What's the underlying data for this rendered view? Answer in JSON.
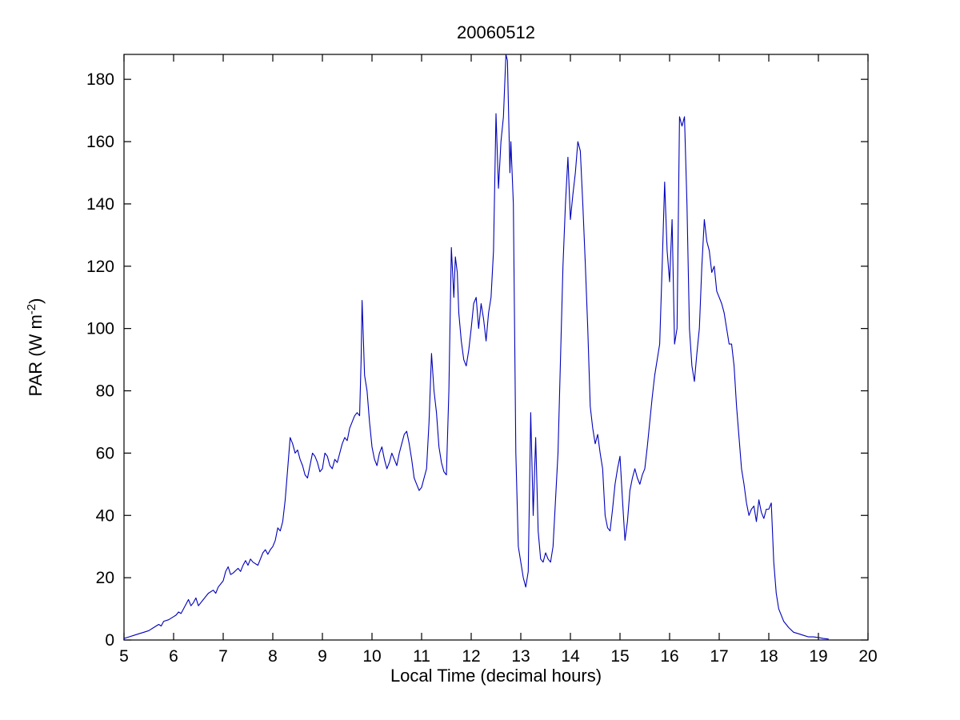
{
  "chart_data": {
    "type": "line",
    "title": "20060512",
    "xlabel": "Local Time (decimal hours)",
    "ylabel": "PAR (W m-2)",
    "ylabel_parts": {
      "main": "PAR (W m",
      "sup": "-2",
      "end": ")"
    },
    "xlim": [
      5,
      20
    ],
    "ylim": [
      0,
      188
    ],
    "x_ticks": [
      5,
      6,
      7,
      8,
      9,
      10,
      11,
      12,
      13,
      14,
      15,
      16,
      17,
      18,
      19,
      20
    ],
    "y_ticks": [
      0,
      20,
      40,
      60,
      80,
      100,
      120,
      140,
      160,
      180
    ],
    "grid": false,
    "legend": "none",
    "line_color": "#0000BB",
    "axis_color": "#000000",
    "series": [
      {
        "name": "PAR",
        "points": [
          [
            5.0,
            0.5
          ],
          [
            5.1,
            1
          ],
          [
            5.2,
            1.5
          ],
          [
            5.3,
            2
          ],
          [
            5.4,
            2.5
          ],
          [
            5.5,
            3
          ],
          [
            5.6,
            4
          ],
          [
            5.7,
            5
          ],
          [
            5.75,
            4.5
          ],
          [
            5.8,
            6
          ],
          [
            5.9,
            6.5
          ],
          [
            6.0,
            7.5
          ],
          [
            6.05,
            8
          ],
          [
            6.1,
            9
          ],
          [
            6.15,
            8.5
          ],
          [
            6.2,
            10
          ],
          [
            6.3,
            13
          ],
          [
            6.35,
            11
          ],
          [
            6.4,
            12
          ],
          [
            6.45,
            13.5
          ],
          [
            6.5,
            11
          ],
          [
            6.6,
            13
          ],
          [
            6.7,
            15
          ],
          [
            6.8,
            16
          ],
          [
            6.85,
            15
          ],
          [
            6.9,
            17
          ],
          [
            7.0,
            19
          ],
          [
            7.05,
            22
          ],
          [
            7.1,
            23.5
          ],
          [
            7.15,
            21
          ],
          [
            7.2,
            21.5
          ],
          [
            7.3,
            23
          ],
          [
            7.35,
            22
          ],
          [
            7.4,
            24
          ],
          [
            7.45,
            25.5
          ],
          [
            7.5,
            24
          ],
          [
            7.55,
            26
          ],
          [
            7.6,
            25
          ],
          [
            7.7,
            24
          ],
          [
            7.8,
            28
          ],
          [
            7.85,
            29
          ],
          [
            7.9,
            27.5
          ],
          [
            7.95,
            29
          ],
          [
            8.0,
            30
          ],
          [
            8.05,
            32
          ],
          [
            8.1,
            36
          ],
          [
            8.15,
            35
          ],
          [
            8.2,
            38
          ],
          [
            8.25,
            45
          ],
          [
            8.3,
            55
          ],
          [
            8.35,
            65
          ],
          [
            8.4,
            63
          ],
          [
            8.45,
            60
          ],
          [
            8.5,
            61
          ],
          [
            8.55,
            58
          ],
          [
            8.6,
            56
          ],
          [
            8.65,
            53
          ],
          [
            8.7,
            52
          ],
          [
            8.75,
            56
          ],
          [
            8.8,
            60
          ],
          [
            8.85,
            59
          ],
          [
            8.9,
            57
          ],
          [
            8.95,
            54
          ],
          [
            9.0,
            55
          ],
          [
            9.05,
            60
          ],
          [
            9.1,
            59
          ],
          [
            9.15,
            56
          ],
          [
            9.2,
            55
          ],
          [
            9.25,
            58
          ],
          [
            9.3,
            57
          ],
          [
            9.35,
            60
          ],
          [
            9.4,
            63
          ],
          [
            9.45,
            65
          ],
          [
            9.5,
            64
          ],
          [
            9.55,
            68
          ],
          [
            9.6,
            70
          ],
          [
            9.65,
            72
          ],
          [
            9.7,
            73
          ],
          [
            9.75,
            72
          ],
          [
            9.78,
            90
          ],
          [
            9.8,
            109
          ],
          [
            9.82,
            100
          ],
          [
            9.85,
            85
          ],
          [
            9.9,
            80
          ],
          [
            9.95,
            70
          ],
          [
            10.0,
            62
          ],
          [
            10.05,
            58
          ],
          [
            10.1,
            56
          ],
          [
            10.15,
            60
          ],
          [
            10.2,
            62
          ],
          [
            10.25,
            58
          ],
          [
            10.3,
            55
          ],
          [
            10.35,
            57
          ],
          [
            10.4,
            60
          ],
          [
            10.45,
            58
          ],
          [
            10.5,
            56
          ],
          [
            10.55,
            60
          ],
          [
            10.6,
            63
          ],
          [
            10.65,
            66
          ],
          [
            10.7,
            67
          ],
          [
            10.75,
            63
          ],
          [
            10.8,
            58
          ],
          [
            10.85,
            52
          ],
          [
            10.9,
            50
          ],
          [
            10.95,
            48
          ],
          [
            11.0,
            49
          ],
          [
            11.05,
            52
          ],
          [
            11.1,
            55
          ],
          [
            11.15,
            70
          ],
          [
            11.2,
            92
          ],
          [
            11.25,
            80
          ],
          [
            11.3,
            73
          ],
          [
            11.35,
            62
          ],
          [
            11.4,
            57
          ],
          [
            11.45,
            54
          ],
          [
            11.5,
            53
          ],
          [
            11.55,
            80
          ],
          [
            11.6,
            126
          ],
          [
            11.65,
            110
          ],
          [
            11.68,
            123
          ],
          [
            11.72,
            118
          ],
          [
            11.75,
            105
          ],
          [
            11.8,
            96
          ],
          [
            11.85,
            90
          ],
          [
            11.9,
            88
          ],
          [
            11.95,
            93
          ],
          [
            12.0,
            100
          ],
          [
            12.05,
            108
          ],
          [
            12.1,
            110
          ],
          [
            12.15,
            100
          ],
          [
            12.2,
            108
          ],
          [
            12.25,
            103
          ],
          [
            12.3,
            96
          ],
          [
            12.35,
            105
          ],
          [
            12.4,
            110
          ],
          [
            12.45,
            125
          ],
          [
            12.5,
            169
          ],
          [
            12.55,
            145
          ],
          [
            12.6,
            160
          ],
          [
            12.65,
            168
          ],
          [
            12.7,
            188
          ],
          [
            12.73,
            186
          ],
          [
            12.78,
            150
          ],
          [
            12.8,
            160
          ],
          [
            12.85,
            140
          ],
          [
            12.9,
            60
          ],
          [
            12.95,
            30
          ],
          [
            13.0,
            25
          ],
          [
            13.05,
            20
          ],
          [
            13.1,
            17
          ],
          [
            13.15,
            22
          ],
          [
            13.2,
            73
          ],
          [
            13.25,
            40
          ],
          [
            13.3,
            65
          ],
          [
            13.35,
            35
          ],
          [
            13.4,
            26
          ],
          [
            13.45,
            25
          ],
          [
            13.5,
            28
          ],
          [
            13.55,
            26
          ],
          [
            13.6,
            25
          ],
          [
            13.65,
            30
          ],
          [
            13.7,
            45
          ],
          [
            13.75,
            60
          ],
          [
            13.8,
            90
          ],
          [
            13.85,
            120
          ],
          [
            13.9,
            140
          ],
          [
            13.95,
            155
          ],
          [
            14.0,
            135
          ],
          [
            14.05,
            143
          ],
          [
            14.1,
            150
          ],
          [
            14.15,
            160
          ],
          [
            14.2,
            157
          ],
          [
            14.25,
            140
          ],
          [
            14.3,
            121
          ],
          [
            14.35,
            100
          ],
          [
            14.4,
            75
          ],
          [
            14.45,
            68
          ],
          [
            14.5,
            63
          ],
          [
            14.55,
            66
          ],
          [
            14.6,
            60
          ],
          [
            14.65,
            55
          ],
          [
            14.7,
            40
          ],
          [
            14.75,
            36
          ],
          [
            14.8,
            35
          ],
          [
            14.85,
            42
          ],
          [
            14.9,
            50
          ],
          [
            14.95,
            55
          ],
          [
            15.0,
            59
          ],
          [
            15.05,
            45
          ],
          [
            15.1,
            32
          ],
          [
            15.15,
            38
          ],
          [
            15.2,
            48
          ],
          [
            15.25,
            52
          ],
          [
            15.3,
            55
          ],
          [
            15.35,
            52
          ],
          [
            15.4,
            50
          ],
          [
            15.45,
            53
          ],
          [
            15.5,
            55
          ],
          [
            15.55,
            62
          ],
          [
            15.6,
            70
          ],
          [
            15.65,
            78
          ],
          [
            15.7,
            85
          ],
          [
            15.75,
            90
          ],
          [
            15.8,
            95
          ],
          [
            15.85,
            120
          ],
          [
            15.9,
            147
          ],
          [
            15.95,
            125
          ],
          [
            16.0,
            115
          ],
          [
            16.05,
            135
          ],
          [
            16.1,
            95
          ],
          [
            16.15,
            100
          ],
          [
            16.2,
            168
          ],
          [
            16.25,
            165
          ],
          [
            16.3,
            168
          ],
          [
            16.35,
            140
          ],
          [
            16.4,
            100
          ],
          [
            16.45,
            88
          ],
          [
            16.5,
            83
          ],
          [
            16.55,
            92
          ],
          [
            16.6,
            100
          ],
          [
            16.65,
            120
          ],
          [
            16.7,
            135
          ],
          [
            16.75,
            128
          ],
          [
            16.8,
            125
          ],
          [
            16.85,
            118
          ],
          [
            16.9,
            120
          ],
          [
            16.95,
            112
          ],
          [
            17.0,
            110
          ],
          [
            17.05,
            108
          ],
          [
            17.1,
            105
          ],
          [
            17.15,
            100
          ],
          [
            17.2,
            95
          ],
          [
            17.25,
            95
          ],
          [
            17.3,
            88
          ],
          [
            17.35,
            75
          ],
          [
            17.4,
            65
          ],
          [
            17.45,
            55
          ],
          [
            17.5,
            50
          ],
          [
            17.55,
            44
          ],
          [
            17.6,
            40
          ],
          [
            17.65,
            42
          ],
          [
            17.7,
            43
          ],
          [
            17.75,
            38
          ],
          [
            17.8,
            45
          ],
          [
            17.85,
            41
          ],
          [
            17.9,
            39
          ],
          [
            17.95,
            42
          ],
          [
            18.0,
            42
          ],
          [
            18.05,
            44
          ],
          [
            18.1,
            25
          ],
          [
            18.15,
            15
          ],
          [
            18.2,
            10
          ],
          [
            18.3,
            6
          ],
          [
            18.4,
            4
          ],
          [
            18.5,
            2.5
          ],
          [
            18.6,
            2
          ],
          [
            18.7,
            1.5
          ],
          [
            18.8,
            1
          ],
          [
            18.9,
            1
          ],
          [
            19.0,
            0.8
          ],
          [
            19.1,
            0.5
          ],
          [
            19.2,
            0.3
          ]
        ]
      }
    ]
  }
}
